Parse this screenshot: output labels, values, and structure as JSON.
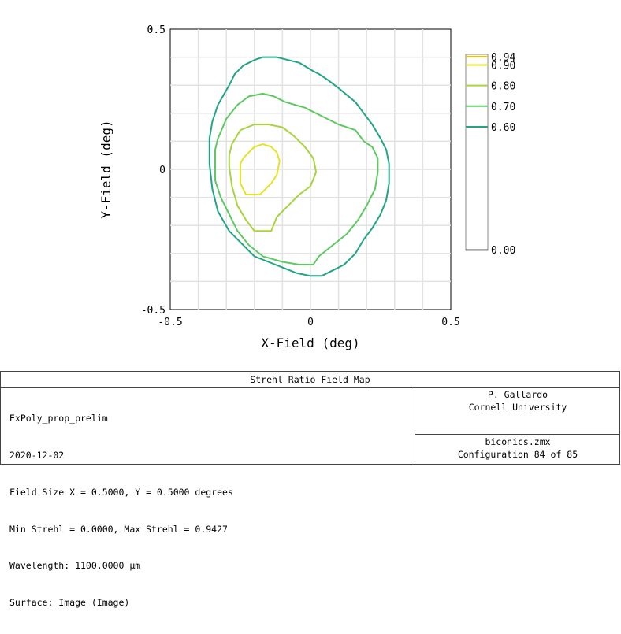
{
  "chart_data": {
    "type": "contour",
    "title": "Strehl Ratio Field Map",
    "xlabel": "X-Field (deg)",
    "ylabel": "Y-Field (deg)",
    "xlim": [
      -0.5,
      0.5
    ],
    "ylim": [
      -0.5,
      0.5
    ],
    "x_ticks": [
      "-0.5",
      "0",
      "0.5"
    ],
    "y_ticks": [
      "0.5",
      "0",
      "-0.5"
    ],
    "grid": true,
    "legend": {
      "placement": "right",
      "levels": [
        {
          "label": "0.94",
          "value": 0.94,
          "color": "#f0c000"
        },
        {
          "label": "0.90",
          "value": 0.9,
          "color": "#e6e226"
        },
        {
          "label": "0.80",
          "value": 0.8,
          "color": "#a8d43c"
        },
        {
          "label": "0.70",
          "value": 0.7,
          "color": "#5ec962"
        },
        {
          "label": "0.60",
          "value": 0.6,
          "color": "#21a685"
        },
        {
          "label": "0.00",
          "value": 0.0,
          "color": "#555555"
        }
      ]
    },
    "contours": [
      {
        "level": 0.9,
        "color": "#e6e226",
        "points": [
          [
            -0.25,
            0.02
          ],
          [
            -0.25,
            -0.05
          ],
          [
            -0.23,
            -0.09
          ],
          [
            -0.18,
            -0.09
          ],
          [
            -0.16,
            -0.07
          ],
          [
            -0.14,
            -0.05
          ],
          [
            -0.12,
            -0.02
          ],
          [
            -0.11,
            0.03
          ],
          [
            -0.12,
            0.06
          ],
          [
            -0.14,
            0.08
          ],
          [
            -0.17,
            0.09
          ],
          [
            -0.2,
            0.08
          ],
          [
            -0.22,
            0.06
          ],
          [
            -0.24,
            0.04
          ]
        ]
      },
      {
        "level": 0.8,
        "color": "#a8d43c",
        "points": [
          [
            -0.29,
            0.01
          ],
          [
            -0.28,
            -0.06
          ],
          [
            -0.26,
            -0.13
          ],
          [
            -0.23,
            -0.18
          ],
          [
            -0.2,
            -0.22
          ],
          [
            -0.14,
            -0.22
          ],
          [
            -0.12,
            -0.17
          ],
          [
            -0.07,
            -0.12
          ],
          [
            -0.04,
            -0.09
          ],
          [
            0.0,
            -0.06
          ],
          [
            0.02,
            -0.01
          ],
          [
            0.01,
            0.04
          ],
          [
            -0.02,
            0.08
          ],
          [
            -0.06,
            0.12
          ],
          [
            -0.1,
            0.15
          ],
          [
            -0.15,
            0.16
          ],
          [
            -0.2,
            0.16
          ],
          [
            -0.25,
            0.14
          ],
          [
            -0.28,
            0.09
          ],
          [
            -0.29,
            0.05
          ]
        ]
      },
      {
        "level": 0.7,
        "color": "#5ec962",
        "points": [
          [
            -0.34,
            0.03
          ],
          [
            -0.34,
            -0.04
          ],
          [
            -0.32,
            -0.1
          ],
          [
            -0.29,
            -0.16
          ],
          [
            -0.26,
            -0.22
          ],
          [
            -0.22,
            -0.27
          ],
          [
            -0.17,
            -0.31
          ],
          [
            -0.1,
            -0.33
          ],
          [
            -0.04,
            -0.34
          ],
          [
            0.01,
            -0.34
          ],
          [
            0.03,
            -0.31
          ],
          [
            0.08,
            -0.27
          ],
          [
            0.13,
            -0.23
          ],
          [
            0.17,
            -0.18
          ],
          [
            0.2,
            -0.13
          ],
          [
            0.23,
            -0.07
          ],
          [
            0.24,
            -0.01
          ],
          [
            0.24,
            0.04
          ],
          [
            0.22,
            0.08
          ],
          [
            0.19,
            0.1
          ],
          [
            0.16,
            0.14
          ],
          [
            0.1,
            0.16
          ],
          [
            0.04,
            0.19
          ],
          [
            -0.02,
            0.22
          ],
          [
            -0.09,
            0.24
          ],
          [
            -0.13,
            0.26
          ],
          [
            -0.17,
            0.27
          ],
          [
            -0.22,
            0.26
          ],
          [
            -0.26,
            0.23
          ],
          [
            -0.3,
            0.18
          ],
          [
            -0.33,
            0.11
          ],
          [
            -0.34,
            0.07
          ]
        ]
      },
      {
        "level": 0.6,
        "color": "#21a685",
        "points": [
          [
            -0.36,
            0.11
          ],
          [
            -0.36,
            0.02
          ],
          [
            -0.35,
            -0.07
          ],
          [
            -0.33,
            -0.15
          ],
          [
            -0.29,
            -0.22
          ],
          [
            -0.25,
            -0.26
          ],
          [
            -0.2,
            -0.31
          ],
          [
            -0.15,
            -0.33
          ],
          [
            -0.1,
            -0.35
          ],
          [
            -0.05,
            -0.37
          ],
          [
            0.0,
            -0.38
          ],
          [
            0.04,
            -0.38
          ],
          [
            0.08,
            -0.36
          ],
          [
            0.12,
            -0.34
          ],
          [
            0.16,
            -0.3
          ],
          [
            0.19,
            -0.25
          ],
          [
            0.22,
            -0.21
          ],
          [
            0.25,
            -0.16
          ],
          [
            0.27,
            -0.11
          ],
          [
            0.28,
            -0.05
          ],
          [
            0.28,
            0.02
          ],
          [
            0.27,
            0.07
          ],
          [
            0.25,
            0.11
          ],
          [
            0.22,
            0.16
          ],
          [
            0.19,
            0.2
          ],
          [
            0.16,
            0.24
          ],
          [
            0.1,
            0.29
          ],
          [
            0.06,
            0.32
          ],
          [
            0.03,
            0.34
          ],
          [
            0.01,
            0.35
          ],
          [
            -0.04,
            0.38
          ],
          [
            -0.08,
            0.39
          ],
          [
            -0.12,
            0.4
          ],
          [
            -0.17,
            0.4
          ],
          [
            -0.2,
            0.39
          ],
          [
            -0.24,
            0.37
          ],
          [
            -0.27,
            0.34
          ],
          [
            -0.29,
            0.3
          ],
          [
            -0.33,
            0.23
          ],
          [
            -0.35,
            0.17
          ]
        ]
      }
    ]
  },
  "info": {
    "title": "Strehl Ratio Field Map",
    "left_lines": [
      "ExPoly_prop_prelim",
      "2020-12-02",
      "Field Size X = 0.5000, Y = 0.5000 degrees",
      "Min Strehl = 0.0000, Max Strehl = 0.9427",
      "Wavelength: 1100.0000 µm",
      "Surface: Image (Image)"
    ],
    "author": "P. Gallardo",
    "organization": "Cornell University",
    "file": "biconics.zmx",
    "configuration": "Configuration 84 of 85"
  }
}
